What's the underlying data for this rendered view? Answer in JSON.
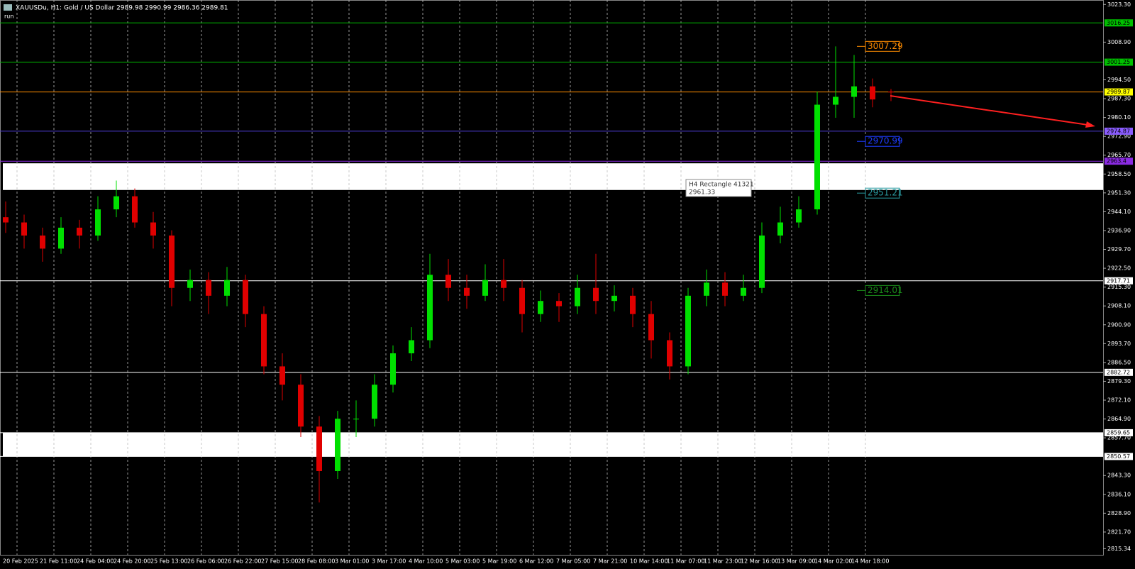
{
  "chart_data": {
    "type": "candlestick",
    "title": "XAUUSDu, H1: Gold / US Dollar 2989.98 2990.99 2986.36 2989.81",
    "subtitle": "run",
    "categories": [
      "20 Feb 2025",
      null,
      "21 Feb 11:00",
      null,
      "24 Feb 04:00",
      null,
      "24 Feb 20:00",
      null,
      "25 Feb 13:00",
      null,
      "26 Feb 06:00",
      null,
      "26 Feb 22:00",
      null,
      "27 Feb 15:00",
      null,
      "28 Feb 08:00",
      null,
      "3 Mar 01:00",
      null,
      "3 Mar 17:00",
      null,
      "4 Mar 10:00",
      null,
      "5 Mar 03:00",
      null,
      "5 Mar 19:00",
      null,
      "6 Mar 12:00",
      null,
      "7 Mar 05:00",
      null,
      "7 Mar 21:00",
      null,
      "10 Mar 14:00",
      null,
      "11 Mar 07:00",
      null,
      "11 Mar 23:00",
      null,
      "12 Mar 16:00",
      null,
      "13 Mar 09:00",
      null,
      "14 Mar 02:00",
      null,
      "14 Mar 18:00",
      null,
      null
    ],
    "open": [
      2942,
      2940,
      2935,
      2930,
      2938,
      2935,
      2945,
      2950,
      2940,
      2935,
      2915,
      2918,
      2912,
      2918,
      2905,
      2885,
      2878,
      2862,
      2845,
      2865,
      2865,
      2878,
      2890,
      2895,
      2920,
      2915,
      2912,
      2918,
      2915,
      2905,
      2910,
      2908,
      2915,
      2910,
      2912,
      2905,
      2895,
      2885,
      2912,
      2917,
      2912,
      2915,
      2935,
      2940,
      2945,
      2985,
      2988,
      2992,
      2989.98
    ],
    "high": [
      2948,
      2943,
      2938,
      2942,
      2941,
      2950,
      2956,
      2953,
      2944,
      2937,
      2922,
      2921,
      2923,
      2920,
      2908,
      2890,
      2882,
      2866,
      2868,
      2872,
      2882,
      2893,
      2900,
      2928,
      2926,
      2920,
      2924,
      2926,
      2918,
      2914,
      2913,
      2920,
      2928,
      2916,
      2915,
      2910,
      2898,
      2915,
      2922,
      2921,
      2920,
      2940,
      2946,
      2950,
      2990,
      3007.29,
      3004,
      2995,
      2990.99
    ],
    "low": [
      2936,
      2930,
      2925,
      2928,
      2930,
      2933,
      2942,
      2938,
      2930,
      2908,
      2910,
      2905,
      2908,
      2900,
      2882,
      2872,
      2858,
      2833,
      2842,
      2858,
      2862,
      2875,
      2887,
      2892,
      2910,
      2907,
      2910,
      2910,
      2898,
      2902,
      2902,
      2905,
      2905,
      2906,
      2900,
      2888,
      2880,
      2882,
      2908,
      2908,
      2910,
      2913,
      2932,
      2938,
      2943,
      2980,
      2980,
      2984,
      2986.36
    ],
    "close": [
      2940,
      2935,
      2930,
      2938,
      2935,
      2945,
      2950,
      2940,
      2935,
      2915,
      2918,
      2912,
      2918,
      2905,
      2885,
      2878,
      2862,
      2845,
      2865,
      2865,
      2878,
      2890,
      2895,
      2920,
      2915,
      2912,
      2918,
      2915,
      2905,
      2910,
      2908,
      2915,
      2910,
      2912,
      2905,
      2895,
      2885,
      2912,
      2917,
      2912,
      2915,
      2935,
      2940,
      2945,
      2985,
      2988,
      2992,
      2987,
      2989.81
    ],
    "up_color": "#00e000",
    "down_color": "#e00000",
    "ylim": [
      2813,
      3025
    ],
    "yticks": [
      {
        "value": 3023.3,
        "label": "3023.30"
      },
      {
        "value": 3008.9,
        "label": "3008.90"
      },
      {
        "value": 2994.5,
        "label": "2994.50"
      },
      {
        "value": 2987.3,
        "label": "2987.30"
      },
      {
        "value": 2980.1,
        "label": "2980.10"
      },
      {
        "value": 2972.9,
        "label": "2972.90"
      },
      {
        "value": 2965.7,
        "label": "2965.70"
      },
      {
        "value": 2958.5,
        "label": "2958.50"
      },
      {
        "value": 2951.3,
        "label": "2951.30"
      },
      {
        "value": 2944.1,
        "label": "2944.10"
      },
      {
        "value": 2936.9,
        "label": "2936.90"
      },
      {
        "value": 2929.7,
        "label": "2929.70"
      },
      {
        "value": 2922.5,
        "label": "2922.50"
      },
      {
        "value": 2915.3,
        "label": "2915.30"
      },
      {
        "value": 2908.1,
        "label": "2908.10"
      },
      {
        "value": 2900.9,
        "label": "2900.90"
      },
      {
        "value": 2893.7,
        "label": "2893.70"
      },
      {
        "value": 2886.5,
        "label": "2886.50"
      },
      {
        "value": 2879.3,
        "label": "2879.30"
      },
      {
        "value": 2872.1,
        "label": "2872.10"
      },
      {
        "value": 2864.9,
        "label": "2864.90"
      },
      {
        "value": 2857.7,
        "label": "2857.70"
      },
      {
        "value": 2843.3,
        "label": "2843.30"
      },
      {
        "value": 2836.1,
        "label": "2836.10"
      },
      {
        "value": 2828.9,
        "label": "2828.90"
      },
      {
        "value": 2821.7,
        "label": "2821.70"
      },
      2815.34
    ],
    "levels": [
      {
        "value": 3016.25,
        "color": "#00c000",
        "label_color": "#00c000"
      },
      {
        "value": 3001.25,
        "color": "#00c000",
        "label_color": "#00c000"
      },
      {
        "value": 2989.87,
        "color": "#ff8c00",
        "label_color": "#ffff00"
      },
      {
        "value": 2974.87,
        "color": "#4b3cd0",
        "label_color": "#8a5cff"
      },
      {
        "value": 2963.4,
        "color": "#8a2be2",
        "label_color": "#8a2be2"
      },
      {
        "value": 2917.71,
        "color": "#ffffff",
        "label_color": "#ffffff"
      },
      {
        "value": 2882.72,
        "color": "#ffffff",
        "label_color": "#ffffff"
      },
      {
        "value": 2859.65,
        "color": "#ffffff",
        "label_color": "#ffffff"
      },
      {
        "value": 2850.57,
        "color": "#ffffff",
        "label_color": "#ffffff"
      }
    ],
    "bands": [
      [
        2962.6,
        2952.4
      ],
      [
        2859.65,
        2850.57
      ]
    ],
    "price_labels": [
      {
        "value": 3007.29,
        "color": "#ff8c00"
      },
      {
        "value": 2970.99,
        "color": "#1e3cff"
      },
      {
        "value": 2951.21,
        "color": "#2a9aa0"
      },
      {
        "value": 2914.01,
        "color": "#1a8a1a"
      }
    ],
    "tooltip": {
      "name": "H4 Rectangle 41321",
      "value": "2961.33"
    }
  }
}
